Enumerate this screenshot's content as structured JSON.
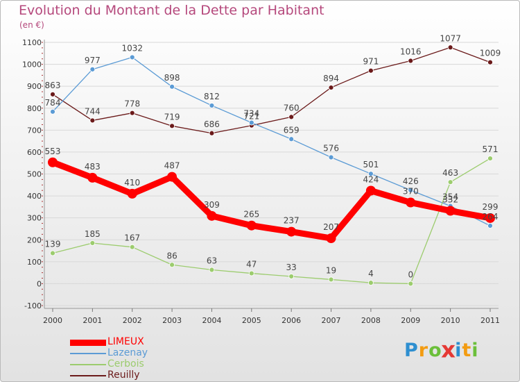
{
  "title": "Evolution du Montant de la Dette par Habitant",
  "subtitle": "(en €)",
  "chart_data": {
    "type": "line",
    "title": "Evolution du Montant de la Dette par Habitant",
    "subtitle": "(en €)",
    "x": [
      "2000",
      "2001",
      "2002",
      "2003",
      "2004",
      "2005",
      "2006",
      "2007",
      "2008",
      "2009",
      "2010",
      "2011"
    ],
    "ylim": [
      -100,
      1100
    ],
    "yticks": [
      -100,
      0,
      100,
      200,
      300,
      400,
      500,
      600,
      700,
      800,
      900,
      1000,
      1100
    ],
    "grid": true,
    "legend": "bottom-left",
    "series": [
      {
        "name": "Reuilly",
        "color": "#6b1a1a",
        "values": [
          863,
          744,
          778,
          719,
          686,
          721,
          760,
          894,
          971,
          1016,
          1077,
          1009
        ]
      },
      {
        "name": "Lazenay",
        "color": "#5b9bd5",
        "values": [
          784,
          977,
          1032,
          898,
          812,
          734,
          659,
          576,
          501,
          426,
          354,
          264
        ]
      },
      {
        "name": "Cerbois",
        "color": "#9ccc6e",
        "values": [
          139,
          185,
          167,
          86,
          63,
          47,
          33,
          19,
          4,
          0,
          463,
          571
        ]
      },
      {
        "name": "LIMEUX",
        "color": "#ff0000",
        "values": [
          553,
          483,
          410,
          487,
          309,
          265,
          237,
          207,
          424,
          370,
          332,
          299
        ]
      }
    ]
  },
  "legend": [
    {
      "name": "LIMEUX",
      "color": "#ff0000"
    },
    {
      "name": "Lazenay",
      "color": "#5b9bd5"
    },
    {
      "name": "Cerbois",
      "color": "#9ccc6e"
    },
    {
      "name": "Reuilly",
      "color": "#6b1a1a"
    }
  ],
  "logo": {
    "letters": [
      "P",
      "r",
      "o",
      "x",
      "i",
      "t",
      "i"
    ],
    "colors": [
      "#2e8fd0",
      "#f39c12",
      "#6bbf3a",
      "#e53935",
      "#2e8fd0",
      "#f39c12",
      "#6bbf3a"
    ]
  }
}
